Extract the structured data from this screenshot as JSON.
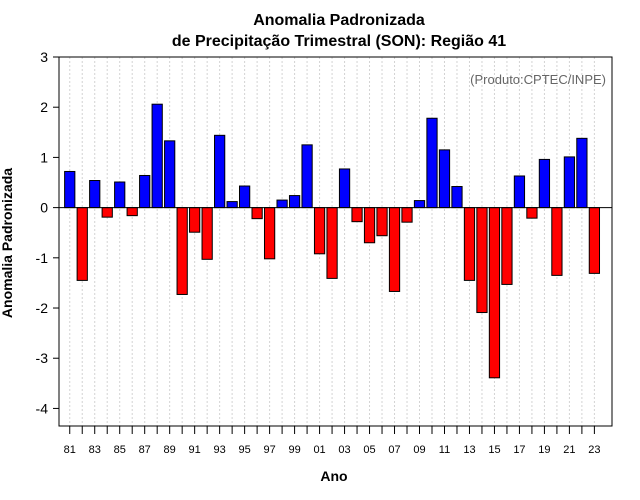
{
  "colors": {
    "positive": "#0000ff",
    "negative": "#ff0000",
    "grid": "#d3d3d3",
    "credit": "#666666"
  },
  "chart_data": {
    "type": "bar",
    "title_line1": "Anomalia Padronizada",
    "title_line2": "de Precipitação Trimestral (SON): Região 41",
    "xlabel": "Ano",
    "ylabel": "Anomalia Padronizada",
    "credit": "(Produto:CPTEC/INPE)",
    "ylim": [
      -4.35,
      3.0
    ],
    "yticks": [
      "-4",
      "-3",
      "-2",
      "-1",
      "0",
      "1",
      "2",
      "3"
    ],
    "grid": true,
    "years": [
      1981,
      1982,
      1983,
      1984,
      1985,
      1986,
      1987,
      1988,
      1989,
      1990,
      1991,
      1992,
      1993,
      1994,
      1995,
      1996,
      1997,
      1998,
      1999,
      2000,
      2001,
      2002,
      2003,
      2004,
      2005,
      2006,
      2007,
      2008,
      2009,
      2010,
      2011,
      2012,
      2013,
      2014,
      2015,
      2016,
      2017,
      2018,
      2019,
      2020,
      2021,
      2022,
      2023
    ],
    "categories": [
      "81",
      "",
      "83",
      "",
      "85",
      "",
      "87",
      "",
      "89",
      "",
      "91",
      "",
      "93",
      "",
      "95",
      "",
      "97",
      "",
      "99",
      "",
      "01",
      "",
      "03",
      "",
      "05",
      "",
      "07",
      "",
      "09",
      "",
      "11",
      "",
      "13",
      "",
      "15",
      "",
      "17",
      "",
      "19",
      "",
      "21",
      "",
      "23"
    ],
    "values": [
      0.72,
      -1.45,
      0.54,
      -0.19,
      0.51,
      -0.16,
      0.64,
      2.06,
      1.33,
      -1.73,
      -0.49,
      -1.03,
      1.44,
      0.12,
      0.43,
      -0.22,
      -1.02,
      0.15,
      0.24,
      1.25,
      -0.92,
      -1.41,
      0.77,
      -0.28,
      -0.7,
      -0.56,
      -1.67,
      -0.29,
      0.14,
      1.78,
      1.15,
      0.42,
      -1.45,
      -2.09,
      -3.39,
      -1.53,
      0.63,
      -0.21,
      0.96,
      -1.35,
      1.01,
      1.38,
      -1.31
    ]
  }
}
